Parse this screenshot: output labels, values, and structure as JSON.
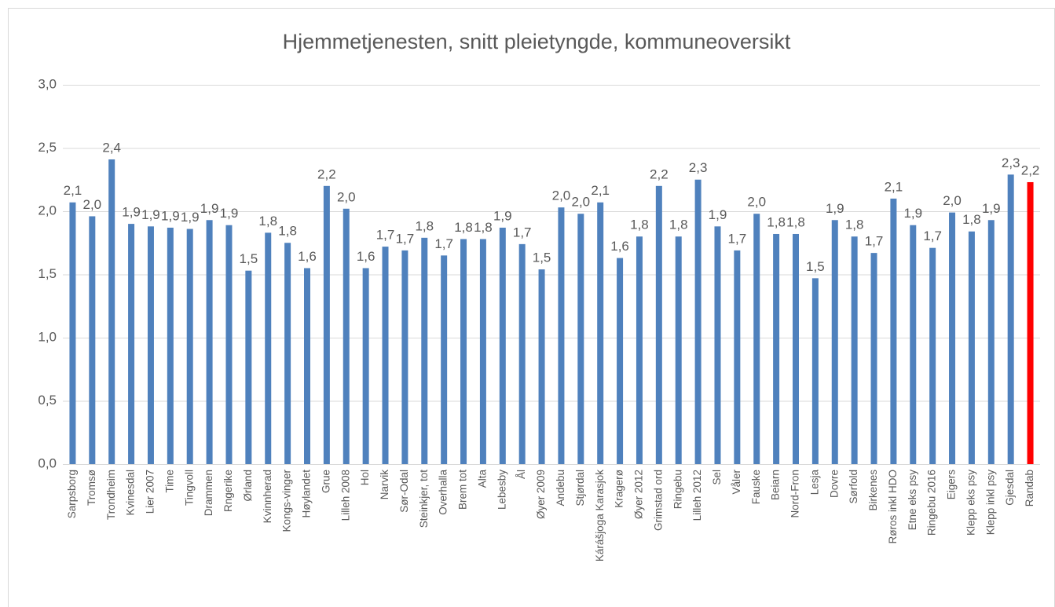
{
  "chart_data": {
    "type": "bar",
    "title": "Hjemmetjenesten, snitt pleietyngde, kommuneoversikt",
    "categories": [
      "Sarpsborg",
      "Tromsø",
      "Trondheim",
      "Kvinesdal",
      "Lier 2007",
      "Time",
      "Tingvoll",
      "Drammen",
      "Rngerike",
      "Ørland",
      "Kvinnherad",
      "Kongs-vinger",
      "Høylandet",
      "Grue",
      "Lilleh 2008",
      "Hol",
      "Narvik",
      "Sør-Odal",
      "Steinkjer, tot",
      "Overhalla",
      "Brem tot",
      "Alta",
      "Lebesby",
      "Ål",
      "Øyer 2009",
      "Andebu",
      "Stjørdal",
      "Kárášjoga Karasjok",
      "Kragerø",
      "Øyer 2012",
      "Grimstad ord",
      "Ringebu",
      "Lilleh 2012",
      "Sel",
      "Våler",
      "Fauske",
      "Beiarn",
      "Nord-Fron",
      "Lesja",
      "Dovre",
      "Sørfold",
      "Birkenes",
      "Røros inkl HDO",
      "Etne eks psy",
      "Ringebu 2016",
      "Eigers",
      "Klepp eks psy",
      "Klepp inkl psy",
      "Gjesdal",
      "Randab"
    ],
    "values": [
      2.07,
      1.96,
      2.41,
      1.9,
      1.88,
      1.87,
      1.86,
      1.93,
      1.89,
      1.53,
      1.83,
      1.75,
      1.55,
      2.2,
      2.02,
      1.55,
      1.72,
      1.69,
      1.79,
      1.65,
      1.78,
      1.78,
      1.87,
      1.74,
      1.54,
      2.03,
      1.98,
      2.07,
      1.63,
      1.8,
      2.2,
      1.8,
      2.25,
      1.88,
      1.69,
      1.98,
      1.82,
      1.82,
      1.47,
      1.93,
      1.8,
      1.67,
      2.1,
      1.89,
      1.71,
      1.99,
      1.84,
      1.93,
      2.29,
      2.23
    ],
    "value_labels": [
      "2,1",
      "2,0",
      "2,4",
      "1,9",
      "1,9",
      "1,9",
      "1,9",
      "1,9",
      "1,9",
      "1,5",
      "1,8",
      "1,8",
      "1,6",
      "2,2",
      "2,0",
      "1,6",
      "1,7",
      "1,7",
      "1,8",
      "1,7",
      "1,8",
      "1,8",
      "1,9",
      "1,7",
      "1,5",
      "2,0",
      "2,0",
      "2,1",
      "1,6",
      "1,8",
      "2,2",
      "1,8",
      "2,3",
      "1,9",
      "1,7",
      "2,0",
      "1,8",
      "1,8",
      "1,5",
      "1,9",
      "1,8",
      "1,7",
      "2,1",
      "1,9",
      "1,7",
      "2,0",
      "1,8",
      "1,9",
      "2,3",
      "2,2"
    ],
    "color": "#4f81bd",
    "colors": [
      "#4f81bd",
      "#4f81bd",
      "#4f81bd",
      "#4f81bd",
      "#4f81bd",
      "#4f81bd",
      "#4f81bd",
      "#4f81bd",
      "#4f81bd",
      "#4f81bd",
      "#4f81bd",
      "#4f81bd",
      "#4f81bd",
      "#4f81bd",
      "#4f81bd",
      "#4f81bd",
      "#4f81bd",
      "#4f81bd",
      "#4f81bd",
      "#4f81bd",
      "#4f81bd",
      "#4f81bd",
      "#4f81bd",
      "#4f81bd",
      "#4f81bd",
      "#4f81bd",
      "#4f81bd",
      "#4f81bd",
      "#4f81bd",
      "#4f81bd",
      "#4f81bd",
      "#4f81bd",
      "#4f81bd",
      "#4f81bd",
      "#4f81bd",
      "#4f81bd",
      "#4f81bd",
      "#4f81bd",
      "#4f81bd",
      "#4f81bd",
      "#4f81bd",
      "#4f81bd",
      "#4f81bd",
      "#4f81bd",
      "#4f81bd",
      "#4f81bd",
      "#4f81bd",
      "#4f81bd",
      "#4f81bd",
      "#ff0000"
    ],
    "ylim": [
      0,
      3
    ],
    "yticks": [
      {
        "value": 0,
        "label": "0,0"
      },
      {
        "value": 0.5,
        "label": "0,5"
      },
      {
        "value": 1,
        "label": "1,0"
      },
      {
        "value": 1.5,
        "label": "1,5"
      },
      {
        "value": 2,
        "label": "2,0"
      },
      {
        "value": 2.5,
        "label": "2,5"
      },
      {
        "value": 3,
        "label": "3,0"
      }
    ],
    "grid": true
  }
}
